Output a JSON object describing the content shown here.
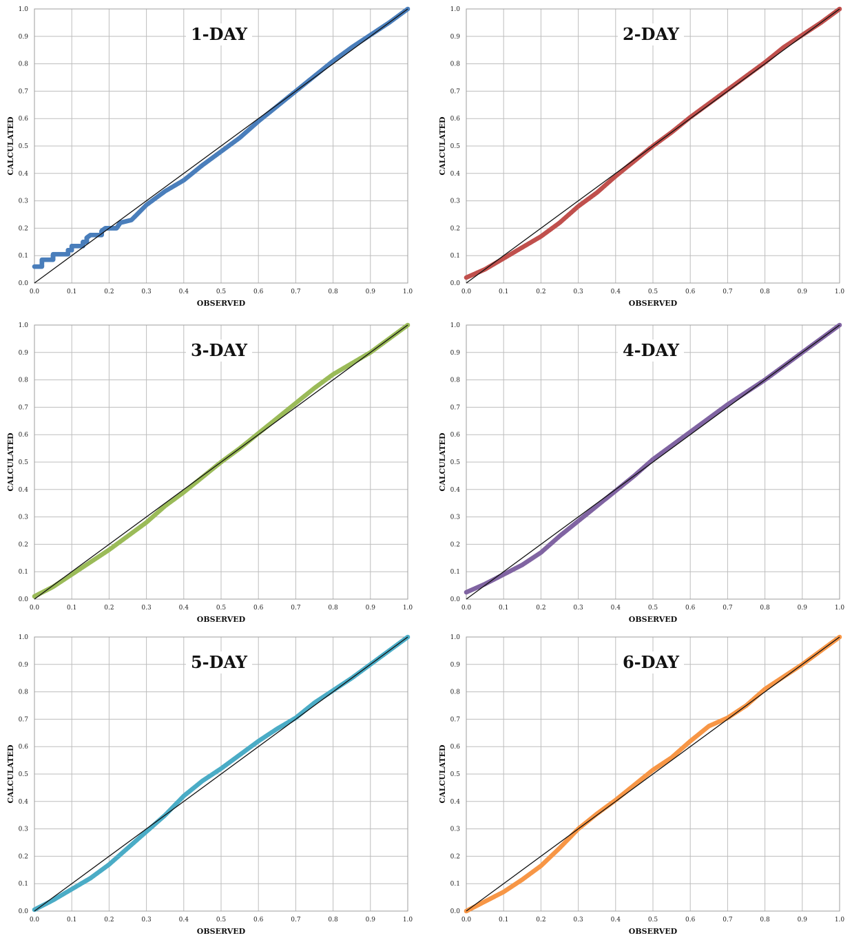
{
  "chart_data": [
    {
      "type": "scatter",
      "title": "1-DAY",
      "xlabel": "OBSERVED",
      "ylabel": "CALCULATED",
      "xlim": [
        0,
        1
      ],
      "ylim": [
        0,
        1
      ],
      "xticks": [
        "0.0",
        "0.1",
        "0.2",
        "0.3",
        "0.4",
        "0.5",
        "0.6",
        "0.7",
        "0.8",
        "0.9",
        "1.0"
      ],
      "yticks": [
        "0.0",
        "0.1",
        "0.2",
        "0.3",
        "0.4",
        "0.5",
        "0.6",
        "0.7",
        "0.8",
        "0.9",
        "1.0"
      ],
      "grid": true,
      "color": "#4a7ebb",
      "reference_line": [
        [
          0,
          0
        ],
        [
          1,
          1
        ]
      ],
      "series": [
        {
          "values": [
            [
              0.0,
              0.06
            ],
            [
              0.02,
              0.06
            ],
            [
              0.02,
              0.085
            ],
            [
              0.05,
              0.085
            ],
            [
              0.05,
              0.105
            ],
            [
              0.09,
              0.105
            ],
            [
              0.09,
              0.12
            ],
            [
              0.1,
              0.12
            ],
            [
              0.1,
              0.135
            ],
            [
              0.13,
              0.135
            ],
            [
              0.13,
              0.15
            ],
            [
              0.14,
              0.15
            ],
            [
              0.14,
              0.165
            ],
            [
              0.15,
              0.175
            ],
            [
              0.18,
              0.175
            ],
            [
              0.18,
              0.19
            ],
            [
              0.19,
              0.2
            ],
            [
              0.22,
              0.2
            ],
            [
              0.23,
              0.22
            ],
            [
              0.26,
              0.23
            ],
            [
              0.3,
              0.285
            ],
            [
              0.35,
              0.335
            ],
            [
              0.4,
              0.375
            ],
            [
              0.45,
              0.43
            ],
            [
              0.5,
              0.48
            ],
            [
              0.55,
              0.53
            ],
            [
              0.6,
              0.59
            ],
            [
              0.65,
              0.645
            ],
            [
              0.7,
              0.7
            ],
            [
              0.75,
              0.755
            ],
            [
              0.8,
              0.81
            ],
            [
              0.85,
              0.86
            ],
            [
              0.9,
              0.905
            ],
            [
              0.95,
              0.95
            ],
            [
              1.0,
              1.0
            ]
          ]
        }
      ]
    },
    {
      "type": "scatter",
      "title": "2-DAY",
      "xlabel": "OBSERVED",
      "ylabel": "CALCULATED",
      "xlim": [
        0,
        1
      ],
      "ylim": [
        0,
        1
      ],
      "xticks": [
        "0.0",
        "0.1",
        "0.2",
        "0.3",
        "0.4",
        "0.5",
        "0.6",
        "0.7",
        "0.8",
        "0.9",
        "1.0"
      ],
      "yticks": [
        "0.0",
        "0.1",
        "0.2",
        "0.3",
        "0.4",
        "0.5",
        "0.6",
        "0.7",
        "0.8",
        "0.9",
        "1.0"
      ],
      "grid": true,
      "color": "#c0504d",
      "reference_line": [
        [
          0,
          0
        ],
        [
          1,
          1
        ]
      ],
      "series": [
        {
          "values": [
            [
              0.0,
              0.02
            ],
            [
              0.05,
              0.05
            ],
            [
              0.1,
              0.09
            ],
            [
              0.15,
              0.13
            ],
            [
              0.2,
              0.17
            ],
            [
              0.25,
              0.22
            ],
            [
              0.3,
              0.28
            ],
            [
              0.35,
              0.33
            ],
            [
              0.4,
              0.39
            ],
            [
              0.45,
              0.445
            ],
            [
              0.5,
              0.5
            ],
            [
              0.55,
              0.55
            ],
            [
              0.6,
              0.605
            ],
            [
              0.65,
              0.655
            ],
            [
              0.7,
              0.705
            ],
            [
              0.75,
              0.755
            ],
            [
              0.8,
              0.805
            ],
            [
              0.85,
              0.86
            ],
            [
              0.9,
              0.905
            ],
            [
              0.95,
              0.95
            ],
            [
              1.0,
              1.0
            ]
          ]
        }
      ]
    },
    {
      "type": "scatter",
      "title": "3-DAY",
      "xlabel": "OBSERVED",
      "ylabel": "CALCULATED",
      "xlim": [
        0,
        1
      ],
      "ylim": [
        0,
        1
      ],
      "xticks": [
        "0.0",
        "0.1",
        "0.2",
        "0.3",
        "0.4",
        "0.5",
        "0.6",
        "0.7",
        "0.8",
        "0.9",
        "1.0"
      ],
      "yticks": [
        "0.0",
        "0.1",
        "0.2",
        "0.3",
        "0.4",
        "0.5",
        "0.6",
        "0.7",
        "0.8",
        "0.9",
        "1.0"
      ],
      "grid": true,
      "color": "#9bbb59",
      "reference_line": [
        [
          0,
          0
        ],
        [
          1,
          1
        ]
      ],
      "series": [
        {
          "values": [
            [
              0.0,
              0.01
            ],
            [
              0.05,
              0.045
            ],
            [
              0.1,
              0.09
            ],
            [
              0.15,
              0.135
            ],
            [
              0.2,
              0.18
            ],
            [
              0.25,
              0.23
            ],
            [
              0.3,
              0.28
            ],
            [
              0.35,
              0.34
            ],
            [
              0.4,
              0.39
            ],
            [
              0.45,
              0.445
            ],
            [
              0.5,
              0.5
            ],
            [
              0.55,
              0.55
            ],
            [
              0.6,
              0.605
            ],
            [
              0.65,
              0.66
            ],
            [
              0.7,
              0.715
            ],
            [
              0.75,
              0.77
            ],
            [
              0.8,
              0.82
            ],
            [
              0.85,
              0.86
            ],
            [
              0.9,
              0.9
            ],
            [
              0.95,
              0.95
            ],
            [
              1.0,
              1.0
            ]
          ]
        }
      ]
    },
    {
      "type": "scatter",
      "title": "4-DAY",
      "xlabel": "OBSERVED",
      "ylabel": "CALCULATED",
      "xlim": [
        0,
        1
      ],
      "ylim": [
        0,
        1
      ],
      "xticks": [
        "0.0",
        "0.1",
        "0.2",
        "0.3",
        "0.4",
        "0.5",
        "0.6",
        "0.7",
        "0.8",
        "0.9",
        "1.0"
      ],
      "yticks": [
        "0.0",
        "0.1",
        "0.2",
        "0.3",
        "0.4",
        "0.5",
        "0.6",
        "0.7",
        "0.8",
        "0.9",
        "1.0"
      ],
      "grid": true,
      "color": "#8064a2",
      "reference_line": [
        [
          0,
          0
        ],
        [
          1,
          1
        ]
      ],
      "series": [
        {
          "values": [
            [
              0.0,
              0.025
            ],
            [
              0.05,
              0.055
            ],
            [
              0.1,
              0.09
            ],
            [
              0.15,
              0.125
            ],
            [
              0.2,
              0.17
            ],
            [
              0.25,
              0.23
            ],
            [
              0.3,
              0.285
            ],
            [
              0.35,
              0.34
            ],
            [
              0.4,
              0.395
            ],
            [
              0.45,
              0.45
            ],
            [
              0.5,
              0.51
            ],
            [
              0.55,
              0.56
            ],
            [
              0.6,
              0.61
            ],
            [
              0.65,
              0.66
            ],
            [
              0.7,
              0.71
            ],
            [
              0.75,
              0.755
            ],
            [
              0.8,
              0.8
            ],
            [
              0.85,
              0.85
            ],
            [
              0.9,
              0.9
            ],
            [
              0.95,
              0.95
            ],
            [
              1.0,
              1.0
            ]
          ]
        }
      ]
    },
    {
      "type": "scatter",
      "title": "5-DAY",
      "xlabel": "OBSERVED",
      "ylabel": "CALCULATED",
      "xlim": [
        0,
        1
      ],
      "ylim": [
        0,
        1
      ],
      "xticks": [
        "0.0",
        "0.1",
        "0.2",
        "0.3",
        "0.4",
        "0.5",
        "0.6",
        "0.7",
        "0.8",
        "0.9",
        "1.0"
      ],
      "yticks": [
        "0.0",
        "0.1",
        "0.2",
        "0.3",
        "0.4",
        "0.5",
        "0.6",
        "0.7",
        "0.8",
        "0.9",
        "1.0"
      ],
      "grid": true,
      "color": "#4bacc6",
      "reference_line": [
        [
          0,
          0
        ],
        [
          1,
          1
        ]
      ],
      "series": [
        {
          "values": [
            [
              0.0,
              0.005
            ],
            [
              0.05,
              0.04
            ],
            [
              0.1,
              0.08
            ],
            [
              0.15,
              0.12
            ],
            [
              0.2,
              0.17
            ],
            [
              0.25,
              0.23
            ],
            [
              0.3,
              0.29
            ],
            [
              0.35,
              0.35
            ],
            [
              0.4,
              0.42
            ],
            [
              0.45,
              0.475
            ],
            [
              0.5,
              0.52
            ],
            [
              0.55,
              0.57
            ],
            [
              0.6,
              0.62
            ],
            [
              0.65,
              0.665
            ],
            [
              0.7,
              0.705
            ],
            [
              0.75,
              0.76
            ],
            [
              0.8,
              0.805
            ],
            [
              0.85,
              0.85
            ],
            [
              0.9,
              0.9
            ],
            [
              0.95,
              0.95
            ],
            [
              1.0,
              1.0
            ]
          ]
        }
      ]
    },
    {
      "type": "scatter",
      "title": "6-DAY",
      "xlabel": "OBSERVED",
      "ylabel": "CALCULATED",
      "xlim": [
        0,
        1
      ],
      "ylim": [
        0,
        1
      ],
      "xticks": [
        "0.0",
        "0.1",
        "0.2",
        "0.3",
        "0.4",
        "0.5",
        "0.6",
        "0.7",
        "0.8",
        "0.9",
        "1.0"
      ],
      "yticks": [
        "0.0",
        "0.1",
        "0.2",
        "0.3",
        "0.4",
        "0.5",
        "0.6",
        "0.7",
        "0.8",
        "0.9",
        "1.0"
      ],
      "grid": true,
      "color": "#f79646",
      "reference_line": [
        [
          0,
          0
        ],
        [
          1,
          1
        ]
      ],
      "series": [
        {
          "values": [
            [
              0.0,
              0.0
            ],
            [
              0.05,
              0.035
            ],
            [
              0.1,
              0.07
            ],
            [
              0.15,
              0.115
            ],
            [
              0.2,
              0.165
            ],
            [
              0.25,
              0.23
            ],
            [
              0.3,
              0.3
            ],
            [
              0.35,
              0.355
            ],
            [
              0.4,
              0.405
            ],
            [
              0.45,
              0.46
            ],
            [
              0.5,
              0.515
            ],
            [
              0.55,
              0.56
            ],
            [
              0.6,
              0.62
            ],
            [
              0.65,
              0.675
            ],
            [
              0.7,
              0.705
            ],
            [
              0.75,
              0.75
            ],
            [
              0.8,
              0.81
            ],
            [
              0.85,
              0.855
            ],
            [
              0.9,
              0.9
            ],
            [
              0.95,
              0.95
            ],
            [
              1.0,
              1.0
            ]
          ]
        }
      ]
    }
  ]
}
